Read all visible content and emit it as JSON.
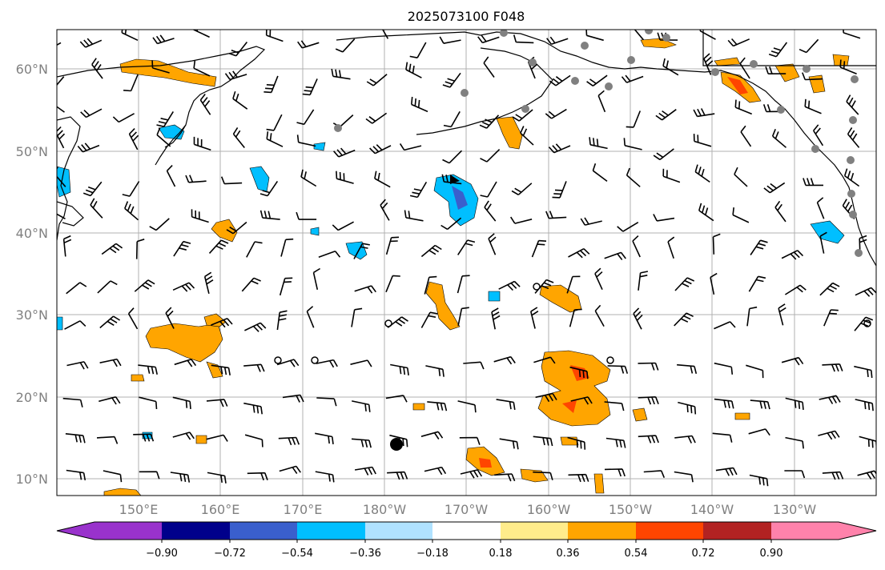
{
  "title": "2025073100 F048",
  "map": {
    "lon_ticks": [
      "150°E",
      "160°E",
      "170°E",
      "180°W",
      "170°W",
      "160°W",
      "150°W",
      "140°W",
      "130°W"
    ],
    "lat_ticks": [
      "60°N",
      "50°N",
      "40°N",
      "30°N",
      "20°N",
      "10°N"
    ],
    "lat_range": [
      8,
      65
    ],
    "lon_range": [
      140,
      240
    ],
    "gridlines": true,
    "colors": {
      "coast": "#000000",
      "grid": "#b0b0b0",
      "pos_light": "#ffa500",
      "pos_strong": "#ff4500",
      "neg_light": "#00bfff",
      "neg_strong": "#3a5fcd",
      "station": "#808080"
    }
  },
  "colorbar": {
    "labels": [
      "−0.90",
      "−0.72",
      "−0.54",
      "−0.36",
      "−0.18",
      "0.18",
      "0.36",
      "0.54",
      "0.72",
      "0.90"
    ],
    "levels": [
      -0.9,
      -0.72,
      -0.54,
      -0.36,
      -0.18,
      0.18,
      0.36,
      0.54,
      0.72,
      0.9
    ],
    "colors": [
      "#9932cc",
      "#00008b",
      "#3a5fcd",
      "#00bfff",
      "#b0e2ff",
      "#ffffff",
      "#ffec8b",
      "#ffa500",
      "#ff4500",
      "#b22222",
      "#ff82ab"
    ]
  }
}
